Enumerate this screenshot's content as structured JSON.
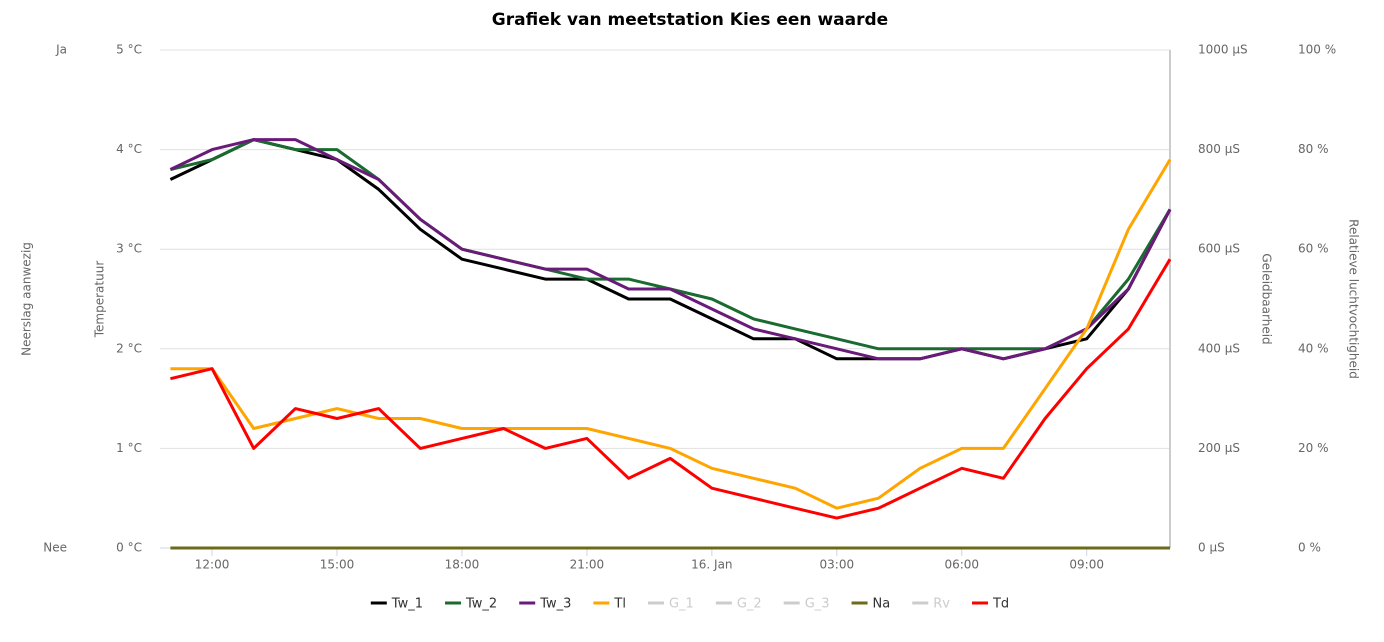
{
  "chart_data": {
    "type": "line",
    "title": "Grafiek van meetstation Kies een waarde",
    "x": [
      11,
      12,
      13,
      14,
      15,
      16,
      17,
      18,
      19,
      20,
      21,
      22,
      23,
      24,
      25,
      26,
      27,
      28,
      29,
      30,
      31,
      32,
      33,
      34,
      35
    ],
    "xlim": [
      10.75,
      35
    ],
    "xticks": [
      {
        "value": 12,
        "label": "12:00"
      },
      {
        "value": 15,
        "label": "15:00"
      },
      {
        "value": 18,
        "label": "18:00"
      },
      {
        "value": 21,
        "label": "21:00"
      },
      {
        "value": 24,
        "label": "16. Jan"
      },
      {
        "value": 27,
        "label": "03:00"
      },
      {
        "value": 30,
        "label": "06:00"
      },
      {
        "value": 33,
        "label": "09:00"
      }
    ],
    "y_label": "Temperatuur",
    "ylim": [
      0,
      5
    ],
    "yticks": [
      {
        "value": 0,
        "label": "0 °C"
      },
      {
        "value": 1,
        "label": "1 °C"
      },
      {
        "value": 2,
        "label": "2 °C"
      },
      {
        "value": 3,
        "label": "3 °C"
      },
      {
        "value": 4,
        "label": "4 °C"
      },
      {
        "value": 5,
        "label": "5 °C"
      }
    ],
    "y2_label": "Geleidbaarheid",
    "y2lim": [
      0,
      1000
    ],
    "y2ticks": [
      {
        "value": 0,
        "label": "0 μS"
      },
      {
        "value": 200,
        "label": "200 μS"
      },
      {
        "value": 400,
        "label": "400 μS"
      },
      {
        "value": 600,
        "label": "600 μS"
      },
      {
        "value": 800,
        "label": "800 μS"
      },
      {
        "value": 1000,
        "label": "1000 μS"
      }
    ],
    "y3_label": "Neerslag aanwezig",
    "y3lim": [
      0,
      1
    ],
    "y3ticks": [
      {
        "value": 0,
        "label": "Nee"
      },
      {
        "value": 1,
        "label": "Ja"
      }
    ],
    "y4_label": "Relatieve luchtvochtigheid",
    "y4lim": [
      0,
      100
    ],
    "y4ticks": [
      {
        "value": 0,
        "label": "0 %"
      },
      {
        "value": 20,
        "label": "20 %"
      },
      {
        "value": 40,
        "label": "40 %"
      },
      {
        "value": 60,
        "label": "60 %"
      },
      {
        "value": 80,
        "label": "80 %"
      },
      {
        "value": 100,
        "label": "100 %"
      }
    ],
    "grid": true,
    "legend": "bottom",
    "series": [
      {
        "name": "Tw_1",
        "color": "#000000",
        "values": [
          3.7,
          3.9,
          4.1,
          4.0,
          3.9,
          3.6,
          3.2,
          2.9,
          2.8,
          2.7,
          2.7,
          2.5,
          2.5,
          2.3,
          2.1,
          2.1,
          1.9,
          1.9,
          1.9,
          2.0,
          1.9,
          2.0,
          2.1,
          2.6,
          3.4
        ]
      },
      {
        "name": "Tw_2",
        "color": "#1a6b2f",
        "values": [
          3.8,
          3.9,
          4.1,
          4.0,
          4.0,
          3.7,
          3.3,
          3.0,
          2.9,
          2.8,
          2.7,
          2.7,
          2.6,
          2.5,
          2.3,
          2.2,
          2.1,
          2.0,
          2.0,
          2.0,
          2.0,
          2.0,
          2.2,
          2.7,
          3.4
        ]
      },
      {
        "name": "Tw_3",
        "color": "#6a1b7a",
        "values": [
          3.8,
          4.0,
          4.1,
          4.1,
          3.9,
          3.7,
          3.3,
          3.0,
          2.9,
          2.8,
          2.8,
          2.6,
          2.6,
          2.4,
          2.2,
          2.1,
          2.0,
          1.9,
          1.9,
          2.0,
          1.9,
          2.0,
          2.2,
          2.6,
          3.4
        ]
      },
      {
        "name": "Tl",
        "color": "#ffa500",
        "values": [
          1.8,
          1.8,
          1.2,
          1.3,
          1.4,
          1.3,
          1.3,
          1.2,
          1.2,
          1.2,
          1.2,
          1.1,
          1.0,
          0.8,
          0.7,
          0.6,
          0.4,
          0.5,
          0.8,
          1.0,
          1.0,
          1.6,
          2.2,
          3.2,
          3.9
        ]
      },
      {
        "name": "G_1",
        "color": "#cccccc",
        "visible": false
      },
      {
        "name": "G_2",
        "color": "#cccccc",
        "visible": false
      },
      {
        "name": "G_3",
        "color": "#cccccc",
        "visible": false
      },
      {
        "name": "Na",
        "color": "#6b6b1a",
        "axis": "y3",
        "values": [
          0,
          0,
          0,
          0,
          0,
          0,
          0,
          0,
          0,
          0,
          0,
          0,
          0,
          0,
          0,
          0,
          0,
          0,
          0,
          0,
          0,
          0,
          0,
          0,
          0
        ]
      },
      {
        "name": "Rv",
        "color": "#cccccc",
        "visible": false
      },
      {
        "name": "Td",
        "color": "#ff0000",
        "values": [
          1.7,
          1.8,
          1.0,
          1.4,
          1.3,
          1.4,
          1.0,
          1.1,
          1.2,
          1.0,
          1.1,
          0.7,
          0.9,
          0.6,
          0.5,
          0.4,
          0.3,
          0.4,
          0.6,
          0.8,
          0.7,
          1.3,
          1.8,
          2.2,
          2.9
        ]
      }
    ]
  }
}
